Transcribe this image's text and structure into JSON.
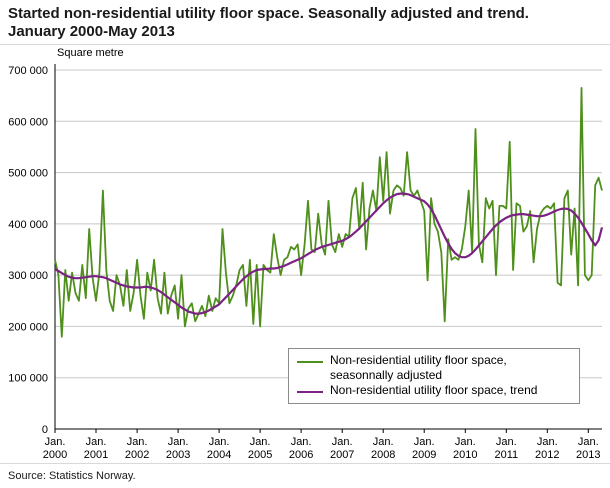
{
  "header": {
    "title_line1": "Started non-residential utility floor space. Seasonally adjusted and trend.",
    "title_line2": "January 2000-May 2013"
  },
  "legend": {
    "items": [
      {
        "label": "Non-residential utility floor space,\nseasonnally adjusted"
      },
      {
        "label": "Non-residential utility floor space, trend"
      }
    ]
  },
  "footer": {
    "source": "Source: Statistics Norway."
  },
  "chart_data": {
    "type": "line",
    "title": "Started non-residential utility floor space. Seasonally adjusted and trend. January 2000-May 2013",
    "ylabel": "Square metre",
    "xlabel": "",
    "ylim": [
      0,
      700000
    ],
    "x_start": "2000-01",
    "x_end": "2013-05",
    "grid": "horizontal",
    "legend_position": "bottom-right-inside",
    "y_ticks": [
      {
        "value": 0,
        "label": "0"
      },
      {
        "value": 100000,
        "label": "100 000"
      },
      {
        "value": 200000,
        "label": "200 000"
      },
      {
        "value": 300000,
        "label": "300 000"
      },
      {
        "value": 400000,
        "label": "400 000"
      },
      {
        "value": 500000,
        "label": "500 000"
      },
      {
        "value": 600000,
        "label": "600 000"
      },
      {
        "value": 700000,
        "label": "700 000"
      }
    ],
    "x_tick_prefix": "Jan.",
    "x_ticks": [
      {
        "month_index": 0,
        "label": "2000"
      },
      {
        "month_index": 12,
        "label": "2001"
      },
      {
        "month_index": 24,
        "label": "2002"
      },
      {
        "month_index": 36,
        "label": "2003"
      },
      {
        "month_index": 48,
        "label": "2004"
      },
      {
        "month_index": 60,
        "label": "2005"
      },
      {
        "month_index": 72,
        "label": "2006"
      },
      {
        "month_index": 84,
        "label": "2007"
      },
      {
        "month_index": 96,
        "label": "2008"
      },
      {
        "month_index": 108,
        "label": "2009"
      },
      {
        "month_index": 120,
        "label": "2010"
      },
      {
        "month_index": 132,
        "label": "2011"
      },
      {
        "month_index": 144,
        "label": "2012"
      },
      {
        "month_index": 156,
        "label": "2013"
      }
    ],
    "series": [
      {
        "name": "Non-residential utility floor space, seasonnally adjusted",
        "color": "#4f8f1c",
        "width": 1.8,
        "values": [
          330000,
          300000,
          180000,
          310000,
          250000,
          305000,
          265000,
          250000,
          320000,
          255000,
          390000,
          295000,
          250000,
          305000,
          465000,
          310000,
          250000,
          230000,
          300000,
          280000,
          240000,
          310000,
          230000,
          265000,
          330000,
          260000,
          215000,
          305000,
          270000,
          330000,
          255000,
          225000,
          305000,
          225000,
          260000,
          280000,
          215000,
          300000,
          200000,
          235000,
          245000,
          210000,
          225000,
          240000,
          220000,
          260000,
          230000,
          255000,
          245000,
          390000,
          305000,
          245000,
          260000,
          280000,
          310000,
          320000,
          240000,
          330000,
          205000,
          320000,
          200000,
          320000,
          310000,
          305000,
          380000,
          335000,
          300000,
          330000,
          335000,
          355000,
          350000,
          360000,
          300000,
          360000,
          445000,
          350000,
          345000,
          420000,
          360000,
          340000,
          445000,
          360000,
          345000,
          380000,
          355000,
          380000,
          375000,
          450000,
          470000,
          390000,
          480000,
          350000,
          430000,
          465000,
          425000,
          530000,
          445000,
          540000,
          420000,
          465000,
          475000,
          470000,
          455000,
          540000,
          465000,
          455000,
          465000,
          445000,
          425000,
          290000,
          450000,
          400000,
          385000,
          345000,
          210000,
          370000,
          330000,
          335000,
          330000,
          350000,
          395000,
          465000,
          345000,
          585000,
          360000,
          325000,
          450000,
          430000,
          445000,
          300000,
          435000,
          435000,
          430000,
          560000,
          310000,
          440000,
          435000,
          385000,
          395000,
          425000,
          325000,
          390000,
          420000,
          430000,
          435000,
          430000,
          440000,
          285000,
          280000,
          450000,
          465000,
          340000,
          430000,
          280000,
          665000,
          300000,
          290000,
          300000,
          475000,
          490000,
          465000
        ]
      },
      {
        "name": "Non-residential utility floor space, trend",
        "color": "#7b2382",
        "width": 2.2,
        "values": [
          312000,
          308000,
          304000,
          300000,
          297000,
          295000,
          294000,
          294000,
          295000,
          296000,
          297000,
          298000,
          298000,
          297000,
          296000,
          294000,
          291000,
          288000,
          285000,
          282000,
          280000,
          278000,
          277000,
          276000,
          276000,
          276000,
          277000,
          277000,
          276000,
          274000,
          271000,
          267000,
          262000,
          257000,
          252000,
          247000,
          242000,
          237000,
          233000,
          229000,
          227000,
          225000,
          225000,
          226000,
          228000,
          231000,
          235000,
          239000,
          243000,
          250000,
          257000,
          264000,
          271000,
          278000,
          285000,
          292000,
          298000,
          303000,
          307000,
          310000,
          311000,
          312000,
          312000,
          313000,
          313000,
          314000,
          316000,
          318000,
          321000,
          324000,
          327000,
          330000,
          333000,
          337000,
          341000,
          345000,
          349000,
          352000,
          355000,
          357000,
          359000,
          361000,
          363000,
          365000,
          367000,
          370000,
          374000,
          379000,
          385000,
          391000,
          398000,
          405000,
          412000,
          419000,
          426000,
          433000,
          440000,
          446000,
          451000,
          455000,
          458000,
          459000,
          459000,
          458000,
          456000,
          453000,
          450000,
          447000,
          444000,
          438000,
          429000,
          417000,
          403000,
          389000,
          375000,
          362000,
          351000,
          343000,
          338000,
          335000,
          335000,
          338000,
          343000,
          350000,
          358000,
          366000,
          374000,
          382000,
          390000,
          397000,
          403000,
          408000,
          412000,
          415000,
          417000,
          418000,
          419000,
          419000,
          418000,
          417000,
          416000,
          415000,
          415000,
          416000,
          418000,
          421000,
          424000,
          427000,
          429000,
          430000,
          429000,
          426000,
          420000,
          412000,
          402000,
          391000,
          380000,
          368000,
          358000,
          368000,
          393000
        ]
      }
    ]
  }
}
